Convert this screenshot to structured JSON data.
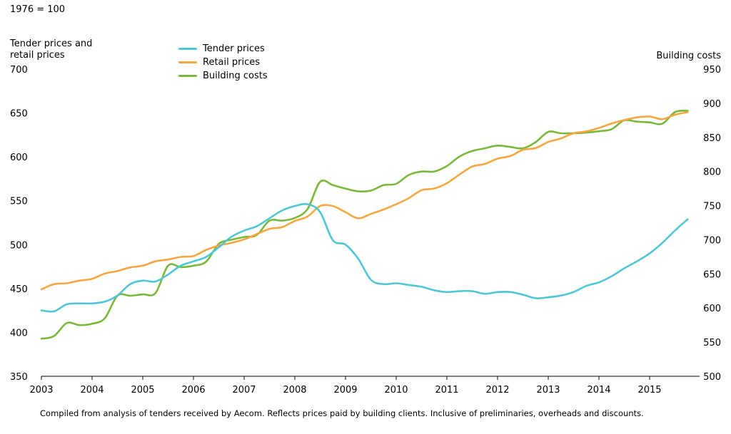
{
  "colors": {
    "tender": "#4fc6d6",
    "retail": "#f5a640",
    "building": "#7ab83a",
    "axis": "#000000"
  },
  "header": {
    "base_note": "1976 = 100"
  },
  "footer": {
    "note": "Compiled from analysis of tenders received by Aecom. Reflects prices paid by building clients. Inclusive of preliminaries, overheads and discounts."
  },
  "legend": {
    "position": "top-left",
    "items": [
      {
        "label": "Tender prices",
        "color": "#4fc6d6"
      },
      {
        "label": "Retail prices",
        "color": "#f5a640"
      },
      {
        "label": "Building costs",
        "color": "#7ab83a"
      }
    ]
  },
  "chart_data": {
    "type": "line",
    "y_label_left": "Tender prices and\nretail prices",
    "y_label_right": "Building costs",
    "ylim_left": [
      350,
      700
    ],
    "ylim_right": [
      500,
      950
    ],
    "yticks_left": [
      700,
      650,
      600,
      550,
      500,
      450,
      400,
      350
    ],
    "yticks_right": [
      950,
      900,
      850,
      800,
      750,
      700,
      650,
      600,
      550,
      500
    ],
    "xlim": [
      2003,
      2016
    ],
    "xticks": [
      "2003",
      "2004",
      "2005",
      "2006",
      "2007",
      "2008",
      "2009",
      "2010",
      "2011",
      "2012",
      "2013",
      "2014",
      "2015"
    ],
    "grid": false,
    "series": [
      {
        "name": "Tender prices",
        "axis": "left",
        "color": "#4fc6d6",
        "x": [
          2003.0,
          2003.25,
          2003.5,
          2003.75,
          2004.0,
          2004.25,
          2004.5,
          2004.75,
          2005.0,
          2005.25,
          2005.5,
          2005.75,
          2006.0,
          2006.25,
          2006.5,
          2006.75,
          2007.0,
          2007.25,
          2007.5,
          2007.75,
          2008.0,
          2008.25,
          2008.5,
          2008.75,
          2009.0,
          2009.25,
          2009.5,
          2009.75,
          2010.0,
          2010.25,
          2010.5,
          2010.75,
          2011.0,
          2011.25,
          2011.5,
          2011.75,
          2012.0,
          2012.25,
          2012.5,
          2012.75,
          2013.0,
          2013.25,
          2013.5,
          2013.75,
          2014.0,
          2014.25,
          2014.5,
          2014.75,
          2015.0,
          2015.25,
          2015.5,
          2015.75
        ],
        "values": [
          425,
          424,
          432,
          433,
          433,
          435,
          442,
          455,
          459,
          458,
          466,
          476,
          481,
          486,
          497,
          509,
          516,
          521,
          530,
          539,
          544,
          546,
          537,
          505,
          500,
          484,
          460,
          455,
          456,
          454,
          452,
          448,
          446,
          447,
          447,
          444,
          446,
          446,
          443,
          439,
          440,
          442,
          446,
          453,
          457,
          464,
          473,
          481,
          490,
          502,
          516,
          529
        ]
      },
      {
        "name": "Retail prices",
        "axis": "left",
        "color": "#f5a640",
        "x": [
          2003.0,
          2003.25,
          2003.5,
          2003.75,
          2004.0,
          2004.25,
          2004.5,
          2004.75,
          2005.0,
          2005.25,
          2005.5,
          2005.75,
          2006.0,
          2006.25,
          2006.5,
          2006.75,
          2007.0,
          2007.25,
          2007.5,
          2007.75,
          2008.0,
          2008.25,
          2008.5,
          2008.75,
          2009.0,
          2009.25,
          2009.5,
          2009.75,
          2010.0,
          2010.25,
          2010.5,
          2010.75,
          2011.0,
          2011.25,
          2011.5,
          2011.75,
          2012.0,
          2012.25,
          2012.5,
          2012.75,
          2013.0,
          2013.25,
          2013.5,
          2013.75,
          2014.0,
          2014.25,
          2014.5,
          2014.75,
          2015.0,
          2015.25,
          2015.5,
          2015.75
        ],
        "values": [
          449,
          455,
          456,
          459,
          461,
          467,
          470,
          474,
          476,
          481,
          483,
          486,
          487,
          494,
          499,
          502,
          506,
          512,
          518,
          520,
          527,
          532,
          544,
          544,
          537,
          530,
          535,
          540,
          546,
          553,
          562,
          564,
          570,
          580,
          589,
          592,
          598,
          601,
          608,
          610,
          617,
          621,
          627,
          629,
          633,
          638,
          642,
          645,
          646,
          643,
          648,
          651
        ]
      },
      {
        "name": "Building costs",
        "axis": "right",
        "color": "#7ab83a",
        "x": [
          2003.0,
          2003.25,
          2003.5,
          2003.75,
          2004.0,
          2004.25,
          2004.5,
          2004.75,
          2005.0,
          2005.25,
          2005.5,
          2005.75,
          2006.0,
          2006.25,
          2006.5,
          2006.75,
          2007.0,
          2007.25,
          2007.5,
          2007.75,
          2008.0,
          2008.25,
          2008.5,
          2008.75,
          2009.0,
          2009.25,
          2009.5,
          2009.75,
          2010.0,
          2010.25,
          2010.5,
          2010.75,
          2011.0,
          2011.25,
          2011.5,
          2011.75,
          2012.0,
          2012.25,
          2012.5,
          2012.75,
          2013.0,
          2013.25,
          2013.5,
          2013.75,
          2014.0,
          2014.25,
          2014.5,
          2014.75,
          2015.0,
          2015.25,
          2015.5,
          2015.75
        ],
        "values": [
          555,
          559,
          578,
          575,
          577,
          585,
          618,
          618,
          620,
          622,
          662,
          660,
          662,
          668,
          694,
          700,
          704,
          707,
          728,
          728,
          732,
          745,
          785,
          780,
          775,
          771,
          772,
          780,
          782,
          795,
          800,
          800,
          808,
          822,
          830,
          834,
          838,
          836,
          834,
          843,
          858,
          856,
          856,
          857,
          859,
          862,
          875,
          873,
          872,
          870,
          887,
          889
        ]
      }
    ]
  }
}
